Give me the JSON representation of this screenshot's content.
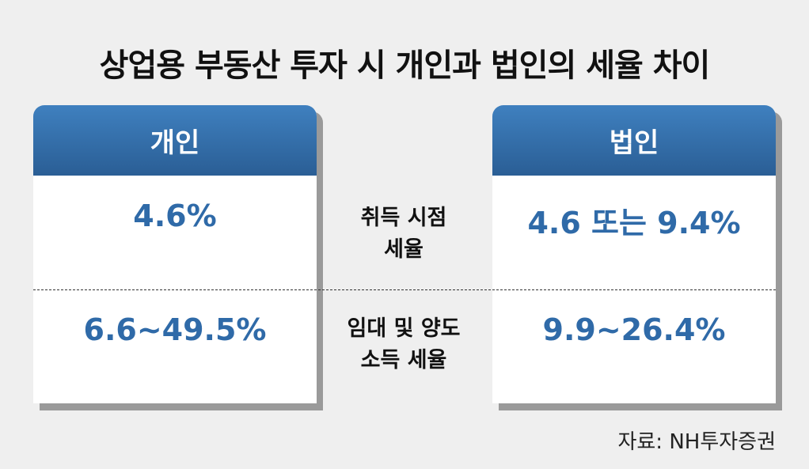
{
  "title": "상업용 부동산 투자 시 개인과 법인의 세율 차이",
  "columns": [
    "개인",
    "법인"
  ],
  "rows": [
    {
      "label": [
        "취득 시점",
        "세율"
      ],
      "values": [
        "4.6%",
        "4.6 또는 9.4%"
      ]
    },
    {
      "label": [
        "임대 및 양도",
        "소득 세율"
      ],
      "values": [
        "6.6~49.5%",
        "9.9~26.4%"
      ]
    }
  ],
  "source": "자료: NH투자증권"
}
